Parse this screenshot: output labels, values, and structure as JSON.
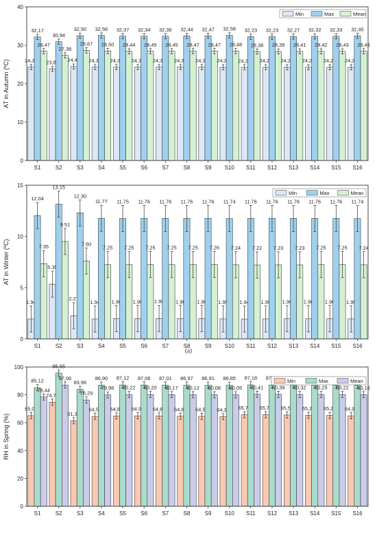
{
  "figure_caption": "(a)",
  "chart_data": [
    {
      "type": "bar",
      "ylabel": "AT in Autumn (ºC)",
      "ylim": [
        0,
        40
      ],
      "yticks": [
        0,
        10,
        20,
        30,
        40
      ],
      "categories": [
        "S1",
        "S2",
        "S3",
        "S4",
        "S5",
        "S6",
        "S7",
        "S8",
        "S9",
        "S10",
        "S11",
        "S12",
        "S13",
        "S14",
        "S15",
        "S16"
      ],
      "legend_position": "top-right",
      "series": [
        {
          "name": "Min",
          "color": "#dbe8f6",
          "values": [
            24.31,
            23.87,
            24.47,
            24.31,
            24.3,
            24.31,
            24.32,
            24.31,
            24.31,
            24.29,
            24.27,
            24.28,
            24.29,
            24.29,
            24.29,
            24.29
          ],
          "labels": [
            "24,31",
            "23,87",
            "24,47",
            "24,31",
            "24,30",
            "24,31",
            "24,32",
            "24,31",
            "24,31",
            "24,29",
            "24,27",
            "24,28",
            "24,29",
            "24,29",
            "24,29",
            "24,29"
          ]
        },
        {
          "name": "Max",
          "color": "#9fd0ee",
          "values": [
            32.17,
            30.94,
            32.5,
            32.56,
            32.37,
            32.34,
            32.36,
            32.44,
            32.47,
            32.58,
            32.23,
            32.23,
            32.27,
            32.32,
            32.33,
            32.45
          ],
          "labels": [
            "32,17",
            "30,94",
            "32,50",
            "32,56",
            "32,37",
            "32,34",
            "32,36",
            "32,44",
            "32,47",
            "32,58",
            "32,23",
            "32,23",
            "32,27",
            "32,32",
            "32,33",
            "32,45"
          ]
        },
        {
          "name": "Mean",
          "color": "#d6f1d2",
          "values": [
            28.47,
            27.38,
            28.67,
            28.5,
            28.44,
            28.45,
            28.45,
            28.47,
            28.47,
            28.48,
            28.38,
            28.39,
            28.41,
            28.42,
            28.43,
            28.45
          ],
          "labels": [
            "28,47",
            "27,38",
            "28,67",
            "28,50",
            "28,44",
            "28,45",
            "28,45",
            "28,47",
            "28,47",
            "28,48",
            "28,38",
            "28,39",
            "28,41",
            "28,42",
            "28,43",
            "28,45"
          ]
        }
      ]
    },
    {
      "type": "bar",
      "ylabel": "AT in Winter (ºC)",
      "ylim": [
        0,
        15
      ],
      "yticks": [
        0,
        5,
        10,
        15
      ],
      "categories": [
        "S1",
        "S2",
        "S3",
        "S4",
        "S5",
        "S6",
        "S7",
        "S8",
        "S9",
        "S10",
        "S11",
        "S12",
        "S13",
        "S14",
        "S15",
        "S16"
      ],
      "legend_position": "top-right",
      "series": [
        {
          "name": "Min",
          "color": "#dbe8f6",
          "values": [
            1.94,
            5.35,
            2.27,
            1.94,
            1.98,
            1.98,
            1.99,
            1.98,
            1.98,
            1.95,
            1.94,
            1.95,
            1.96,
            1.96,
            1.96,
            1.95
          ],
          "labels": [
            "1.94",
            "5.35",
            "2.27",
            "1.94",
            "1.98",
            "1.98",
            "1.99",
            "1.98",
            "1.98",
            "1.95",
            "1.94",
            "1.95",
            "1.96",
            "1.96",
            "1.96",
            "1.95"
          ]
        },
        {
          "name": "Max",
          "color": "#9fd0ee",
          "values": [
            12.04,
            13.15,
            12.3,
            11.77,
            11.75,
            11.76,
            11.76,
            11.76,
            11.76,
            11.74,
            11.76,
            11.76,
            11.76,
            11.76,
            11.76,
            11.74
          ],
          "labels": [
            "12.04",
            "13.15",
            "12.30",
            "11.77",
            "11.75",
            "11.76",
            "11.76",
            "11.76",
            "11.76",
            "11.74",
            "11.76",
            "11.76",
            "11.76",
            "11.76",
            "11.76",
            "11.74"
          ]
        },
        {
          "name": "Mean",
          "color": "#d6f1d2",
          "values": [
            7.35,
            9.51,
            7.6,
            7.25,
            7.25,
            7.25,
            7.25,
            7.25,
            7.26,
            7.24,
            7.22,
            7.23,
            7.23,
            7.25,
            7.25,
            7.24
          ],
          "labels": [
            "7.35",
            "9.51",
            "7.60",
            "7.25",
            "7.25",
            "7.25",
            "7.25",
            "7.25",
            "7.26",
            "7.24",
            "7.22",
            "7.23",
            "7.23",
            "7.25",
            "7.25",
            "7.24"
          ]
        }
      ]
    },
    {
      "type": "bar",
      "ylabel": "RH in Spring (%)",
      "ylim": [
        0,
        100
      ],
      "yticks": [
        0,
        20,
        40,
        60,
        80,
        100
      ],
      "categories": [
        "S1",
        "S2",
        "S3",
        "S4",
        "S5",
        "S6",
        "S7",
        "S8",
        "S9",
        "S10",
        "S11",
        "S12",
        "S13",
        "S14",
        "S15",
        "S16"
      ],
      "legend_position": "top-right",
      "series": [
        {
          "name": "Min",
          "color": "#f8c9b3",
          "values": [
            65.08,
            74.72,
            61.39,
            64.51,
            64.84,
            64.95,
            64.89,
            64.67,
            64.57,
            64.36,
            65.72,
            65.73,
            65.55,
            65.29,
            65.22,
            64.94
          ],
          "labels": [
            "65,08",
            "74,72",
            "61,39",
            "64,51",
            "64,84",
            "64,95",
            "64,89",
            "64,67",
            "64,57",
            "64,36",
            "65,72",
            "65,73",
            "65,55",
            "65,29",
            "65,22",
            "64,94"
          ]
        },
        {
          "name": "Max",
          "color": "#a9dccc",
          "values": [
            85.12,
            95.65,
            83.96,
            86.9,
            87.12,
            87.06,
            87.01,
            86.97,
            86.91,
            86.85,
            87.18,
            87.12,
            87.05,
            86.99,
            86.93,
            86.85
          ],
          "labels": [
            "85,12",
            "95,65",
            "83,96",
            "86,90",
            "87,12",
            "87,06",
            "87,01",
            "86,97",
            "86,91",
            "86,85",
            "87,18",
            "87,12",
            "87,05",
            "86,99",
            "86,93",
            "86,85"
          ]
        },
        {
          "name": "Mean",
          "color": "#c9cde9",
          "values": [
            78.44,
            87.06,
            76.29,
            79.96,
            80.22,
            80.2,
            80.17,
            80.12,
            80.08,
            80.05,
            80.41,
            80.39,
            80.32,
            80.25,
            80.22,
            80.16
          ],
          "labels": [
            "78,44",
            "87,06",
            "76,29",
            "79,96",
            "80,22",
            "80,20",
            "80,17",
            "80,12",
            "80,08",
            "80,05",
            "80,41",
            "80,39",
            "80,32",
            "80,25",
            "80,22",
            "80,16"
          ]
        }
      ]
    }
  ]
}
